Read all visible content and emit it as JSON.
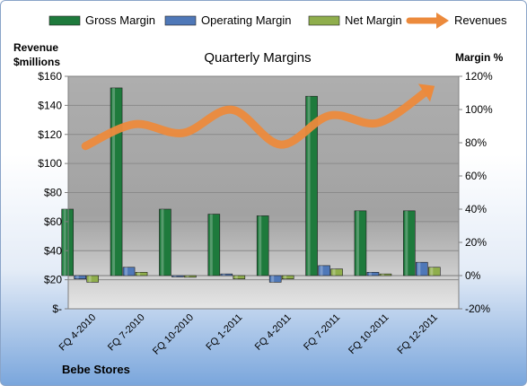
{
  "chart_data": {
    "type": "bar",
    "title": "Quarterly Margins",
    "ylabel_left": "Revenue\n$millions",
    "ylabel_right": "Margin %",
    "footer": "Bebe Stores",
    "categories": [
      "FQ 4-2010",
      "FQ 7-2010",
      "FQ 10-2010",
      "FQ 1-2011",
      "FQ 4-2011",
      "FQ 7-2011",
      "FQ 10-2011",
      "FQ 12-2011"
    ],
    "series": [
      {
        "name": "Gross Margin",
        "type": "bar",
        "axis": "right",
        "color": "#1e7a3c",
        "values": [
          40,
          113,
          40,
          37,
          36,
          108,
          39,
          39
        ]
      },
      {
        "name": "Operating Margin",
        "type": "bar",
        "axis": "right",
        "color": "#4f78b8",
        "values": [
          -2,
          5,
          0,
          1,
          -4,
          6,
          2,
          8
        ]
      },
      {
        "name": "Net Margin",
        "type": "bar",
        "axis": "right",
        "color": "#8fae4c",
        "values": [
          -4,
          2,
          -1,
          -2,
          -2,
          4,
          1,
          5
        ]
      },
      {
        "name": "Revenues",
        "type": "line",
        "axis": "left",
        "color": "#ec8a3c",
        "values": [
          112,
          127,
          121,
          137,
          113,
          133,
          128,
          150
        ]
      }
    ],
    "y_left": {
      "min": 0,
      "max": 160,
      "ticks": [
        0,
        20,
        40,
        60,
        80,
        100,
        120,
        140,
        160
      ],
      "tick_labels": [
        "$-",
        "$20",
        "$40",
        "$60",
        "$80",
        "$100",
        "$120",
        "$140",
        "$160"
      ]
    },
    "y_right": {
      "min": -20,
      "max": 120,
      "ticks": [
        -20,
        0,
        20,
        40,
        60,
        80,
        100,
        120
      ],
      "tick_labels": [
        "-20%",
        "0%",
        "20%",
        "40%",
        "60%",
        "80%",
        "100%",
        "120%"
      ]
    },
    "legend_position": "top",
    "grid": true
  }
}
